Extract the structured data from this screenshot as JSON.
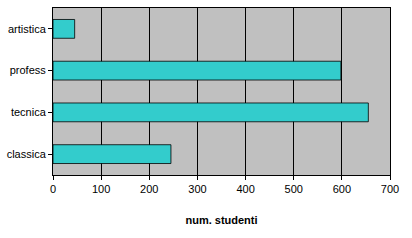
{
  "chart_data": {
    "type": "bar",
    "orientation": "horizontal",
    "categories": [
      "classica",
      "tecnica",
      "profess",
      "artistica"
    ],
    "values": [
      245,
      655,
      598,
      45
    ],
    "color": "#33cccc",
    "x_label": "num. studenti",
    "xlim": [
      0,
      700
    ],
    "xticks": [
      0,
      100,
      200,
      300,
      400,
      500,
      600,
      700
    ],
    "grid": true
  }
}
